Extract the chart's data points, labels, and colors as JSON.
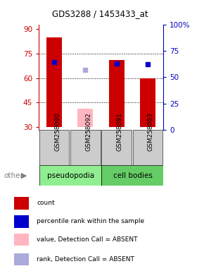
{
  "title": "GDS3288 / 1453433_at",
  "samples": [
    "GSM258090",
    "GSM258092",
    "GSM258091",
    "GSM258093"
  ],
  "bar_bottom": 30,
  "ylim_left": [
    28,
    93
  ],
  "ylim_right": [
    0,
    100
  ],
  "yticks_left": [
    30,
    45,
    60,
    75,
    90
  ],
  "yticks_right": [
    0,
    25,
    50,
    75,
    100
  ],
  "ytick_labels_right": [
    "0",
    "25",
    "50",
    "75",
    "100%"
  ],
  "hlines": [
    45,
    60,
    75
  ],
  "red_bars": {
    "GSM258090": 85,
    "GSM258092": 41,
    "GSM258091": 71,
    "GSM258093": 60
  },
  "red_bar_colors": {
    "GSM258090": "#CC0000",
    "GSM258092": "#FFB6C1",
    "GSM258091": "#CC0000",
    "GSM258093": "#CC0000"
  },
  "blue_dots_pct": {
    "GSM258090": 64,
    "GSM258091": 63,
    "GSM258093": 62
  },
  "light_blue_dots_pct": {
    "GSM258092": 57
  },
  "bar_width": 0.5,
  "dot_size": 30,
  "legend_items": [
    {
      "label": "count",
      "color": "#CC0000"
    },
    {
      "label": "percentile rank within the sample",
      "color": "#0000CC"
    },
    {
      "label": "value, Detection Call = ABSENT",
      "color": "#FFB6C1"
    },
    {
      "label": "rank, Detection Call = ABSENT",
      "color": "#AAAADD"
    }
  ],
  "pseudopodia_color": "#90EE90",
  "cell_bodies_color": "#66CC66",
  "gray_box_color": "#CCCCCC",
  "left_tick_color": "#CC0000",
  "right_tick_color": "#0000BB"
}
